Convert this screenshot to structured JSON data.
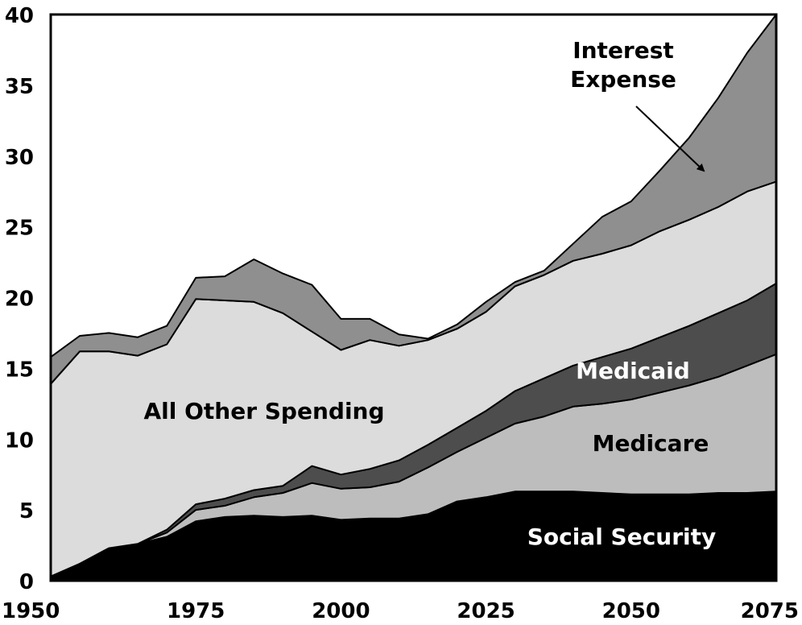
{
  "chart_data": {
    "type": "area",
    "stacked": true,
    "x": [
      1950,
      1955,
      1960,
      1965,
      1970,
      1975,
      1980,
      1985,
      1990,
      1995,
      2000,
      2005,
      2010,
      2015,
      2020,
      2025,
      2030,
      2035,
      2040,
      2045,
      2050,
      2055,
      2060,
      2065,
      2070,
      2075
    ],
    "xlim": [
      1950,
      2075
    ],
    "ylim": [
      0,
      40
    ],
    "xticks": [
      1950,
      1975,
      2000,
      2025,
      2050,
      2075
    ],
    "yticks": [
      0,
      5,
      10,
      15,
      20,
      25,
      30,
      35,
      40
    ],
    "grid": false,
    "legend": "none",
    "series": [
      {
        "name": "Social Security",
        "color": "#000000",
        "label_color": "#ffffff",
        "values": [
          0.3,
          1.2,
          2.3,
          2.6,
          3.1,
          4.2,
          4.5,
          4.6,
          4.5,
          4.6,
          4.3,
          4.4,
          4.4,
          4.7,
          5.6,
          5.9,
          6.3,
          6.3,
          6.3,
          6.2,
          6.1,
          6.1,
          6.1,
          6.2,
          6.2,
          6.3
        ]
      },
      {
        "name": "Medicare",
        "color": "#bdbdbd",
        "label_color": "#000000",
        "values": [
          0,
          0,
          0,
          0,
          0.3,
          0.8,
          0.8,
          1.3,
          1.7,
          2.3,
          2.2,
          2.2,
          2.6,
          3.3,
          3.5,
          4.2,
          4.8,
          5.3,
          6.0,
          6.3,
          6.7,
          7.2,
          7.7,
          8.2,
          9.0,
          9.7
        ]
      },
      {
        "name": "Medicaid",
        "color": "#4d4d4d",
        "label_color": "#ffffff",
        "values": [
          0,
          0,
          0,
          0,
          0.2,
          0.4,
          0.5,
          0.5,
          0.5,
          1.2,
          1.0,
          1.3,
          1.5,
          1.6,
          1.7,
          1.9,
          2.3,
          2.7,
          2.9,
          3.3,
          3.6,
          3.9,
          4.2,
          4.5,
          4.6,
          5.0
        ]
      },
      {
        "name": "All Other Spending",
        "color": "#dcdcdc",
        "label_color": "#000000",
        "values": [
          13.6,
          15.0,
          13.9,
          13.3,
          13.1,
          14.5,
          14.0,
          13.3,
          12.2,
          9.5,
          8.8,
          9.1,
          8.1,
          7.4,
          7.0,
          7.0,
          7.4,
          7.3,
          7.4,
          7.3,
          7.3,
          7.5,
          7.5,
          7.5,
          7.7,
          7.2
        ]
      },
      {
        "name": "Interest Expense",
        "color": "#8f8f8f",
        "label_color": "#000000",
        "values": [
          1.9,
          1.1,
          1.3,
          1.3,
          1.3,
          1.5,
          1.7,
          3.0,
          2.8,
          3.3,
          2.2,
          1.5,
          0.8,
          0.1,
          0.3,
          0.7,
          0.3,
          0.3,
          1.2,
          2.6,
          3.1,
          4.3,
          5.8,
          7.7,
          9.8,
          11.8
        ]
      }
    ],
    "annotations": [
      {
        "text_lines": [
          "Interest",
          "Expense"
        ],
        "arrow": true
      }
    ]
  }
}
